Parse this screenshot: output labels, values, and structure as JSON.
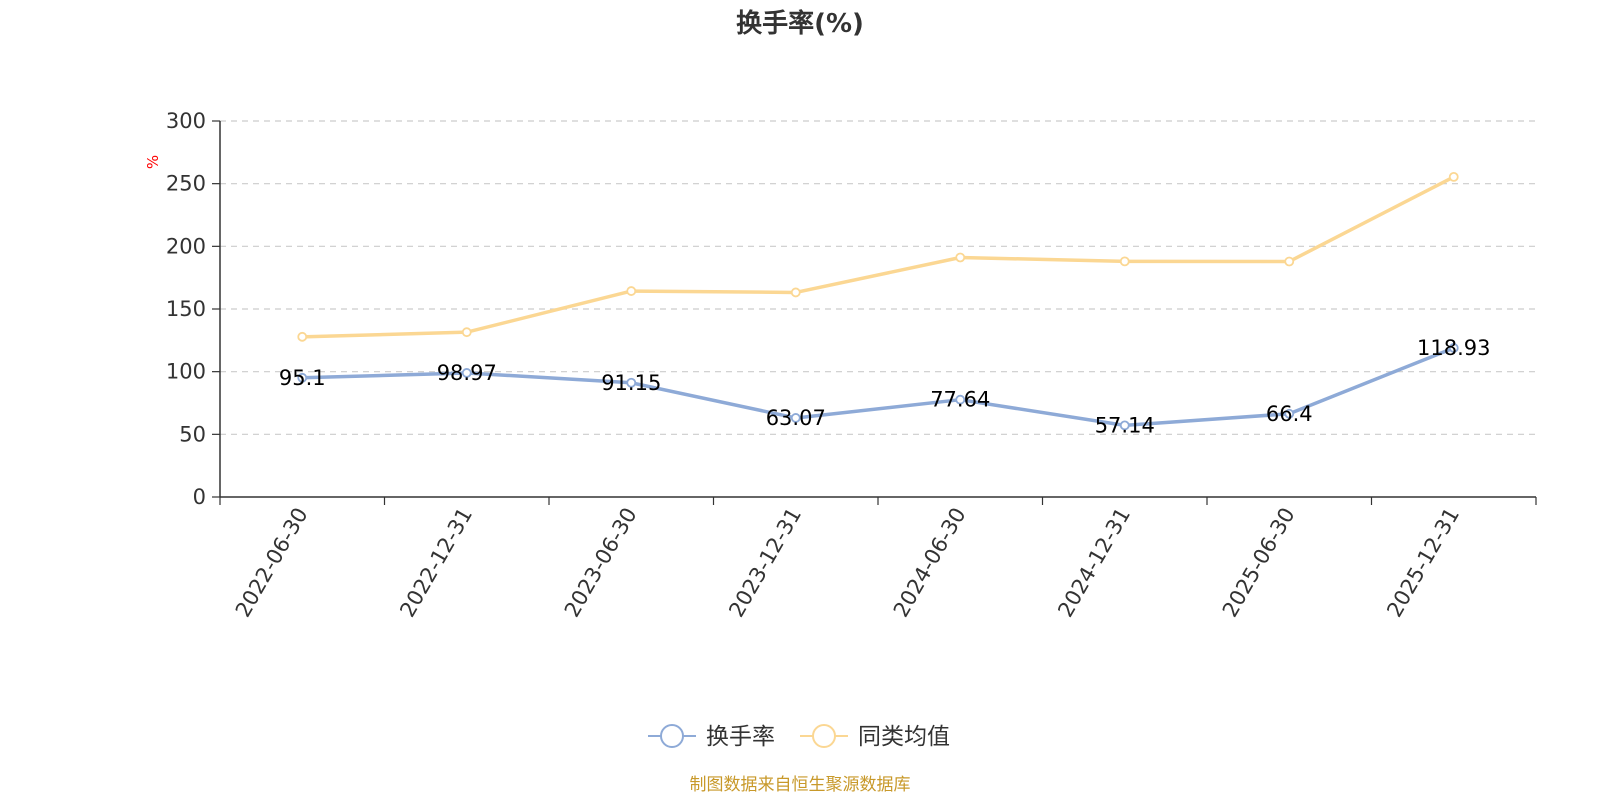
{
  "chart_data": {
    "type": "line",
    "title": "换手率(%)",
    "ylabel": "%",
    "xlabel": "",
    "ylim": [
      0,
      300
    ],
    "y_ticks": [
      0,
      50,
      100,
      150,
      200,
      250,
      300
    ],
    "grid": true,
    "legend_position": "bottom-center",
    "categories": [
      "2022-06-30",
      "2022-12-31",
      "2023-06-30",
      "2023-12-31",
      "2024-06-30",
      "2024-12-31",
      "2025-06-30",
      "2025-12-31"
    ],
    "series": [
      {
        "name": "换手率",
        "color": "#8eaad7",
        "values": [
          95.1,
          98.97,
          91.15,
          63.07,
          77.64,
          57.14,
          66.4,
          118.93
        ],
        "labels": [
          "95.1",
          "98.97",
          "91.15",
          "63.07",
          "77.64",
          "57.14",
          "66.4",
          "118.93"
        ],
        "show_labels": true
      },
      {
        "name": "同类均值",
        "color": "#fbd793",
        "values": [
          127.8,
          131.5,
          164.3,
          163.2,
          191.1,
          188.0,
          187.9,
          255.4
        ],
        "show_labels": false
      }
    ],
    "source": "制图数据来自恒生聚源数据库"
  }
}
